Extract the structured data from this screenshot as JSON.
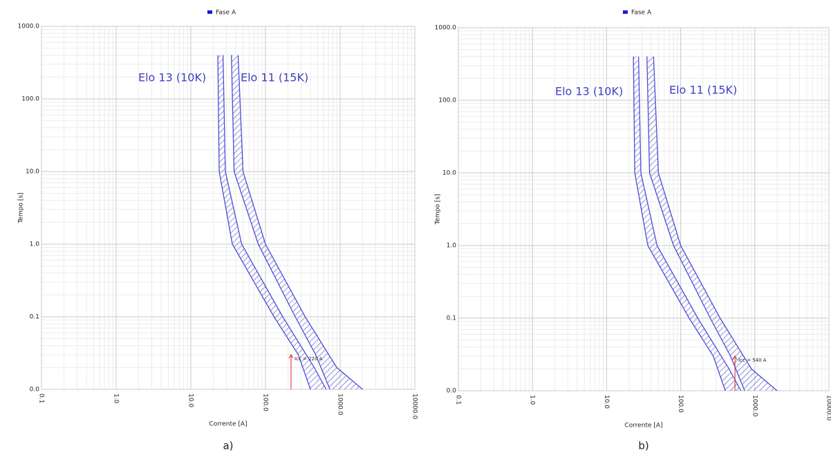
{
  "chart_data": [
    {
      "type": "line",
      "legend": "Fase A",
      "legend_color": "#1a1ad8",
      "x_label": "Corrente [A]",
      "y_label": "Tempo [s]",
      "caption": "a)",
      "log_x": true,
      "log_y": true,
      "grid": true,
      "minor_grid": true,
      "xlim": [
        0.1,
        10000
      ],
      "ylim": [
        0.01,
        1000
      ],
      "xticks": [
        0.1,
        {
          "value": 1,
          "label": "1.0"
        },
        {
          "value": 10,
          "label": "10.0"
        },
        {
          "value": 100,
          "label": "100.0"
        },
        {
          "value": 1000,
          "label": "1000.0"
        },
        {
          "value": 10000,
          "label": "10000.0"
        }
      ],
      "yticks": [
        {
          "value": 0.01,
          "label": "0.0"
        },
        0.1,
        {
          "value": 1,
          "label": "1.0"
        },
        {
          "value": 10,
          "label": "10.0"
        },
        {
          "value": 100,
          "label": "100.0"
        },
        {
          "value": 1000,
          "label": "1000.0"
        }
      ],
      "series": [
        {
          "name": "Elo 13 (10K)",
          "color": "#4b4bd6",
          "x_min": [
            23,
            24,
            36,
            130,
            275,
            400
          ],
          "values_min": [
            400,
            10,
            1,
            0.1,
            0.03,
            0.01
          ],
          "x_max": [
            27,
            29,
            48,
            170,
            450,
            650
          ],
          "values_max": [
            400,
            10,
            1,
            0.1,
            0.02,
            0.01
          ]
        },
        {
          "name": "Elo 11 (15K)",
          "color": "#4b4bd6",
          "x_min": [
            35,
            38,
            80,
            250,
            470,
            730
          ],
          "values_min": [
            400,
            10,
            1,
            0.1,
            0.03,
            0.01
          ],
          "x_max": [
            43,
            50,
            100,
            340,
            900,
            2000
          ],
          "values_max": [
            400,
            10,
            1,
            0.1,
            0.02,
            0.01
          ]
        }
      ],
      "marker": {
        "x": 220,
        "y": 0.03,
        "label": "Icc = 220 A",
        "color": "#e02020"
      }
    },
    {
      "type": "line",
      "legend": "Fase A",
      "legend_color": "#1a1ad8",
      "x_label": "Corrente [A]",
      "y_label": "Tempo [s]",
      "caption": "b)",
      "log_x": true,
      "log_y": true,
      "grid": true,
      "minor_grid": true,
      "xlim": [
        0.1,
        10000
      ],
      "ylim": [
        0.01,
        1000
      ],
      "xticks": [
        0.1,
        {
          "value": 1,
          "label": "1.0"
        },
        {
          "value": 10,
          "label": "10.0"
        },
        {
          "value": 100,
          "label": "100.0"
        },
        {
          "value": 1000,
          "label": "1000.0"
        },
        {
          "value": 10000,
          "label": "10000.0"
        }
      ],
      "yticks": [
        {
          "value": 0.01,
          "label": "0.0"
        },
        0.1,
        {
          "value": 1,
          "label": "1.0"
        },
        {
          "value": 10,
          "label": "10.0"
        },
        {
          "value": 100,
          "label": "100.0"
        },
        {
          "value": 1000,
          "label": "1000.0"
        }
      ],
      "series": [
        {
          "name": "Elo 13 (10K)",
          "color": "#4b4bd6",
          "x_min": [
            23,
            24,
            36,
            130,
            275,
            400
          ],
          "values_min": [
            400,
            10,
            1,
            0.1,
            0.03,
            0.01
          ],
          "x_max": [
            27,
            29,
            48,
            170,
            450,
            650
          ],
          "values_max": [
            400,
            10,
            1,
            0.1,
            0.02,
            0.01
          ]
        },
        {
          "name": "Elo 11 (15K)",
          "color": "#4b4bd6",
          "x_min": [
            35,
            38,
            80,
            250,
            470,
            730
          ],
          "values_min": [
            400,
            10,
            1,
            0.1,
            0.03,
            0.01
          ],
          "x_max": [
            43,
            50,
            100,
            340,
            900,
            2000
          ],
          "values_max": [
            400,
            10,
            1,
            0.1,
            0.02,
            0.01
          ]
        }
      ],
      "marker": {
        "x": 540,
        "y": 0.03,
        "label": "Icc = 540 A",
        "color": "#e02020"
      }
    }
  ]
}
